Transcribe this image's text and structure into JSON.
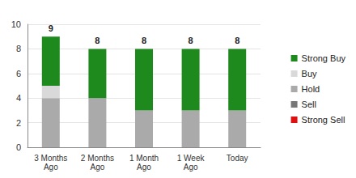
{
  "chart_data": {
    "type": "bar",
    "stacked": true,
    "categories": [
      "3 Months\nAgo",
      "2 Months\nAgo",
      "1 Month\nAgo",
      "1 Week\nAgo",
      "Today"
    ],
    "series": [
      {
        "name": "Strong Buy",
        "color": "#1e8a1e",
        "values": [
          4,
          4,
          5,
          5,
          5
        ]
      },
      {
        "name": "Buy",
        "color": "#d9d9d9",
        "values": [
          1,
          0,
          0,
          0,
          0
        ]
      },
      {
        "name": "Hold",
        "color": "#aaaaaa",
        "values": [
          4,
          4,
          3,
          3,
          3
        ]
      },
      {
        "name": "Sell",
        "color": "#777777",
        "values": [
          0,
          0,
          0,
          0,
          0
        ]
      },
      {
        "name": "Strong Sell",
        "color": "#dd1111",
        "values": [
          0,
          0,
          0,
          0,
          0
        ]
      }
    ],
    "totals": [
      9,
      8,
      8,
      8,
      8
    ],
    "ylim": [
      0,
      10
    ],
    "yticks": [
      0,
      2,
      4,
      6,
      8,
      10
    ],
    "grid": true,
    "legend": "right"
  }
}
